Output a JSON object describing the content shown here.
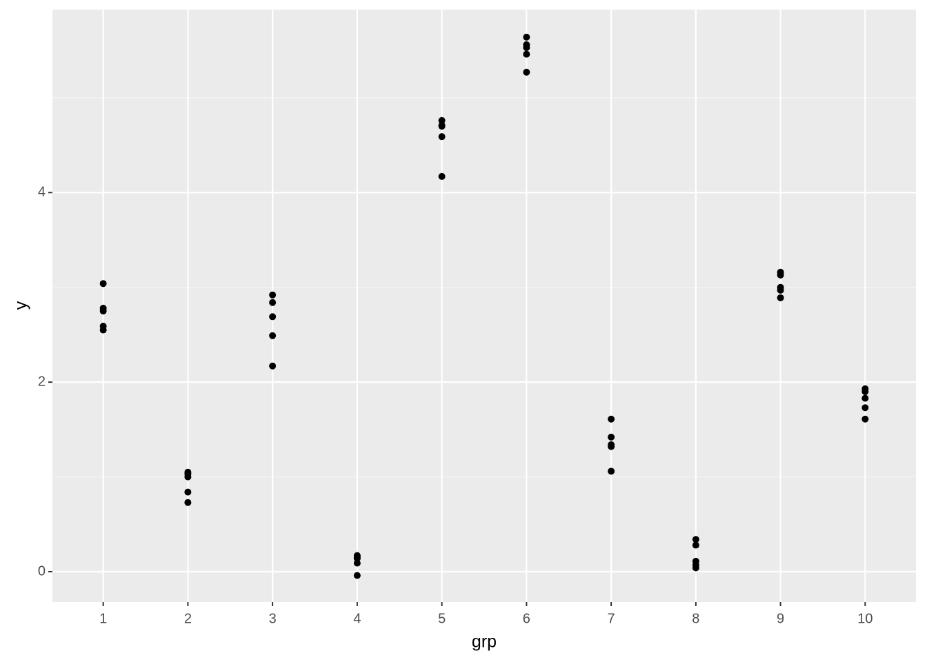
{
  "chart_data": {
    "type": "scatter",
    "x_label": "grp",
    "y_label": "y",
    "x": [
      1,
      1,
      1,
      1,
      1,
      2,
      2,
      2,
      2,
      2,
      3,
      3,
      3,
      3,
      3,
      4,
      4,
      4,
      4,
      4,
      5,
      5,
      5,
      5,
      5,
      6,
      6,
      6,
      6,
      6,
      7,
      7,
      7,
      7,
      7,
      8,
      8,
      8,
      8,
      8,
      9,
      9,
      9,
      9,
      9,
      10,
      10,
      10,
      10,
      10
    ],
    "y": [
      3.04,
      2.78,
      2.75,
      2.59,
      2.55,
      1.05,
      1.03,
      1.0,
      0.84,
      0.73,
      2.92,
      2.84,
      2.69,
      2.49,
      2.17,
      0.17,
      0.15,
      0.14,
      0.09,
      -0.04,
      4.76,
      4.71,
      4.7,
      4.59,
      4.17,
      5.64,
      5.56,
      5.53,
      5.46,
      5.27,
      1.61,
      1.42,
      1.34,
      1.32,
      1.06,
      0.34,
      0.28,
      0.11,
      0.07,
      0.04,
      3.16,
      3.13,
      3.0,
      2.97,
      2.89,
      1.93,
      1.9,
      1.83,
      1.73,
      1.61
    ],
    "color": "#000000",
    "xlim": [
      0.4,
      10.6
    ],
    "xticks": [
      1,
      2,
      3,
      4,
      5,
      6,
      7,
      8,
      9,
      10
    ],
    "ylim": [
      -0.32,
      5.93
    ],
    "yticks": [
      0,
      2,
      4
    ],
    "minor_yticks": [
      1,
      3,
      5
    ],
    "grid": true
  }
}
